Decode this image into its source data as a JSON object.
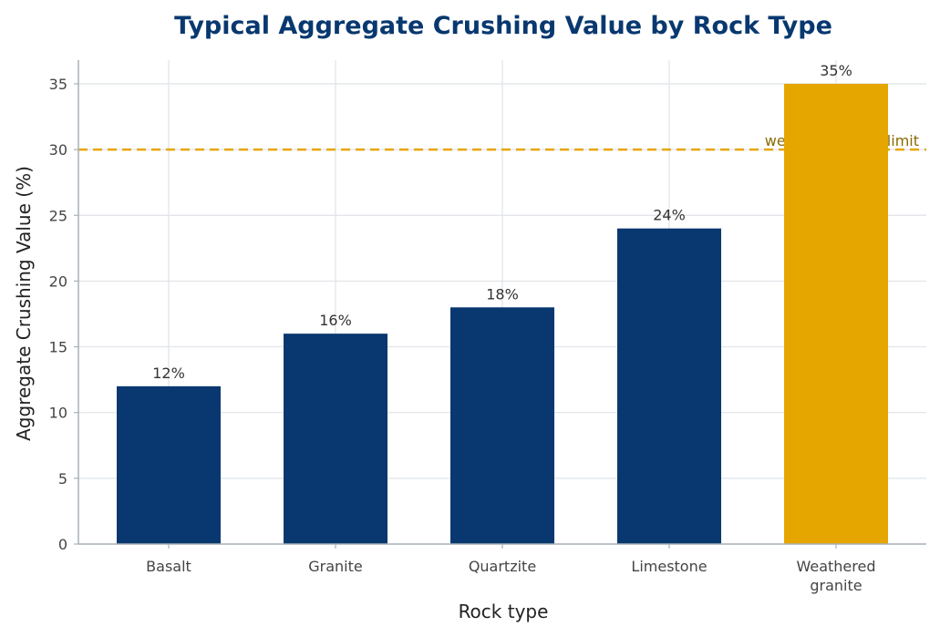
{
  "chart_data": {
    "type": "bar",
    "title": "Typical Aggregate Crushing Value by Rock Type",
    "xlabel": "Rock type",
    "ylabel": "Aggregate Crushing Value (%)",
    "categories": [
      [
        "Basalt"
      ],
      [
        "Granite"
      ],
      [
        "Quartzite"
      ],
      [
        "Limestone"
      ],
      [
        "Weathered",
        "granite"
      ]
    ],
    "values": [
      12,
      16,
      18,
      24,
      35
    ],
    "data_labels": [
      "12%",
      "16%",
      "18%",
      "24%",
      "35%"
    ],
    "ylim": [
      0,
      36.8
    ],
    "yticks": [
      0,
      5,
      10,
      15,
      20,
      25,
      30,
      35
    ],
    "grid": true,
    "bar_colors": [
      "#08386f",
      "#08386f",
      "#08386f",
      "#08386f",
      "#e6a600"
    ],
    "reference_line": {
      "value": 30,
      "label": "wearing-surface limit",
      "color": "#e6a600",
      "label_color": "#8a6a00",
      "style": "dashed"
    },
    "colors": {
      "title": "#08386f",
      "grid": "#dfe3e8",
      "axis": "#a9b1b8"
    }
  }
}
